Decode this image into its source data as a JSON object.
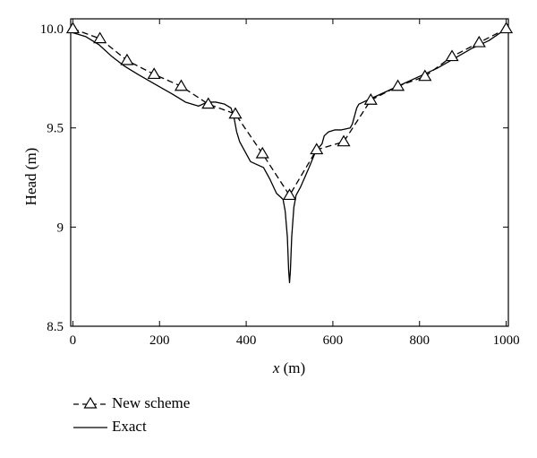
{
  "chart_data": {
    "type": "line",
    "xlabel_var": "x",
    "xlabel_unit": " (m)",
    "ylabel": "Head (m)",
    "xlim": [
      -5,
      1005
    ],
    "ylim": [
      8.5,
      10.05
    ],
    "xticks": [
      0,
      200,
      400,
      600,
      800,
      1000
    ],
    "xtick_labels": [
      "0",
      "200",
      "400",
      "600",
      "800",
      "1000"
    ],
    "yticks": [
      8.5,
      9,
      9.5,
      10
    ],
    "ytick_labels": [
      "8.5",
      "9",
      "9.5",
      "10.0"
    ],
    "grid": false,
    "legend_position": "below",
    "series": [
      {
        "name": "New scheme",
        "style": "dashed",
        "marker": "triangle",
        "color": "#000000",
        "x": [
          0,
          62.5,
          125,
          187.5,
          250,
          312.5,
          375,
          437.5,
          500,
          562.5,
          625,
          687.5,
          750,
          812.5,
          875,
          937.5,
          1000
        ],
        "y": [
          10.0,
          9.95,
          9.84,
          9.77,
          9.71,
          9.62,
          9.57,
          9.37,
          9.16,
          9.39,
          9.43,
          9.64,
          9.71,
          9.76,
          9.86,
          9.93,
          10.0
        ]
      },
      {
        "name": "Exact",
        "style": "solid",
        "color": "#000000",
        "x": [
          0,
          30,
          60,
          90,
          120,
          150,
          190,
          230,
          260,
          290,
          310,
          330,
          350,
          365,
          372,
          378,
          385,
          395,
          410,
          420,
          440,
          455,
          470,
          485,
          490,
          495,
          498,
          500,
          502,
          505,
          510,
          515,
          525,
          545,
          560,
          575,
          580,
          590,
          605,
          620,
          640,
          645,
          650,
          655,
          660,
          670,
          690,
          720,
          760,
          800,
          840,
          880,
          920,
          960,
          1000
        ],
        "y": [
          9.98,
          9.96,
          9.92,
          9.86,
          9.81,
          9.77,
          9.72,
          9.67,
          9.63,
          9.61,
          9.63,
          9.63,
          9.62,
          9.6,
          9.55,
          9.48,
          9.43,
          9.39,
          9.33,
          9.32,
          9.3,
          9.24,
          9.17,
          9.14,
          9.08,
          8.95,
          8.78,
          8.72,
          8.78,
          8.95,
          9.1,
          9.16,
          9.2,
          9.3,
          9.38,
          9.42,
          9.46,
          9.48,
          9.49,
          9.49,
          9.5,
          9.52,
          9.56,
          9.6,
          9.62,
          9.63,
          9.65,
          9.68,
          9.72,
          9.76,
          9.8,
          9.85,
          9.9,
          9.94,
          10.0
        ]
      }
    ]
  },
  "legend": {
    "items": [
      {
        "label": "New scheme"
      },
      {
        "label": "Exact"
      }
    ]
  }
}
